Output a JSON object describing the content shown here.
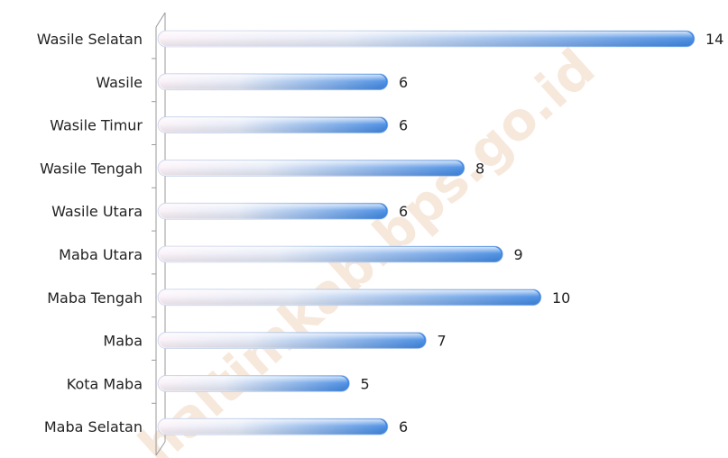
{
  "watermark": "haltimkab.bps.go.id",
  "chart_data": {
    "type": "bar",
    "orientation": "horizontal",
    "title": "",
    "xlabel": "",
    "ylabel": "",
    "categories": [
      "Wasile Selatan",
      "Wasile",
      "Wasile Timur",
      "Wasile Tengah",
      "Wasile Utara",
      "Maba Utara",
      "Maba Tengah",
      "Maba",
      "Kota Maba",
      "Maba Selatan"
    ],
    "values": [
      14,
      6,
      6,
      8,
      6,
      9,
      10,
      7,
      5,
      6
    ],
    "xlim": [
      0,
      14
    ],
    "grid": false,
    "legend": "none",
    "bar_color_start": "#fbf2f8",
    "bar_color_end": "#3f87e2",
    "axis_color": "#9a9a9a"
  }
}
